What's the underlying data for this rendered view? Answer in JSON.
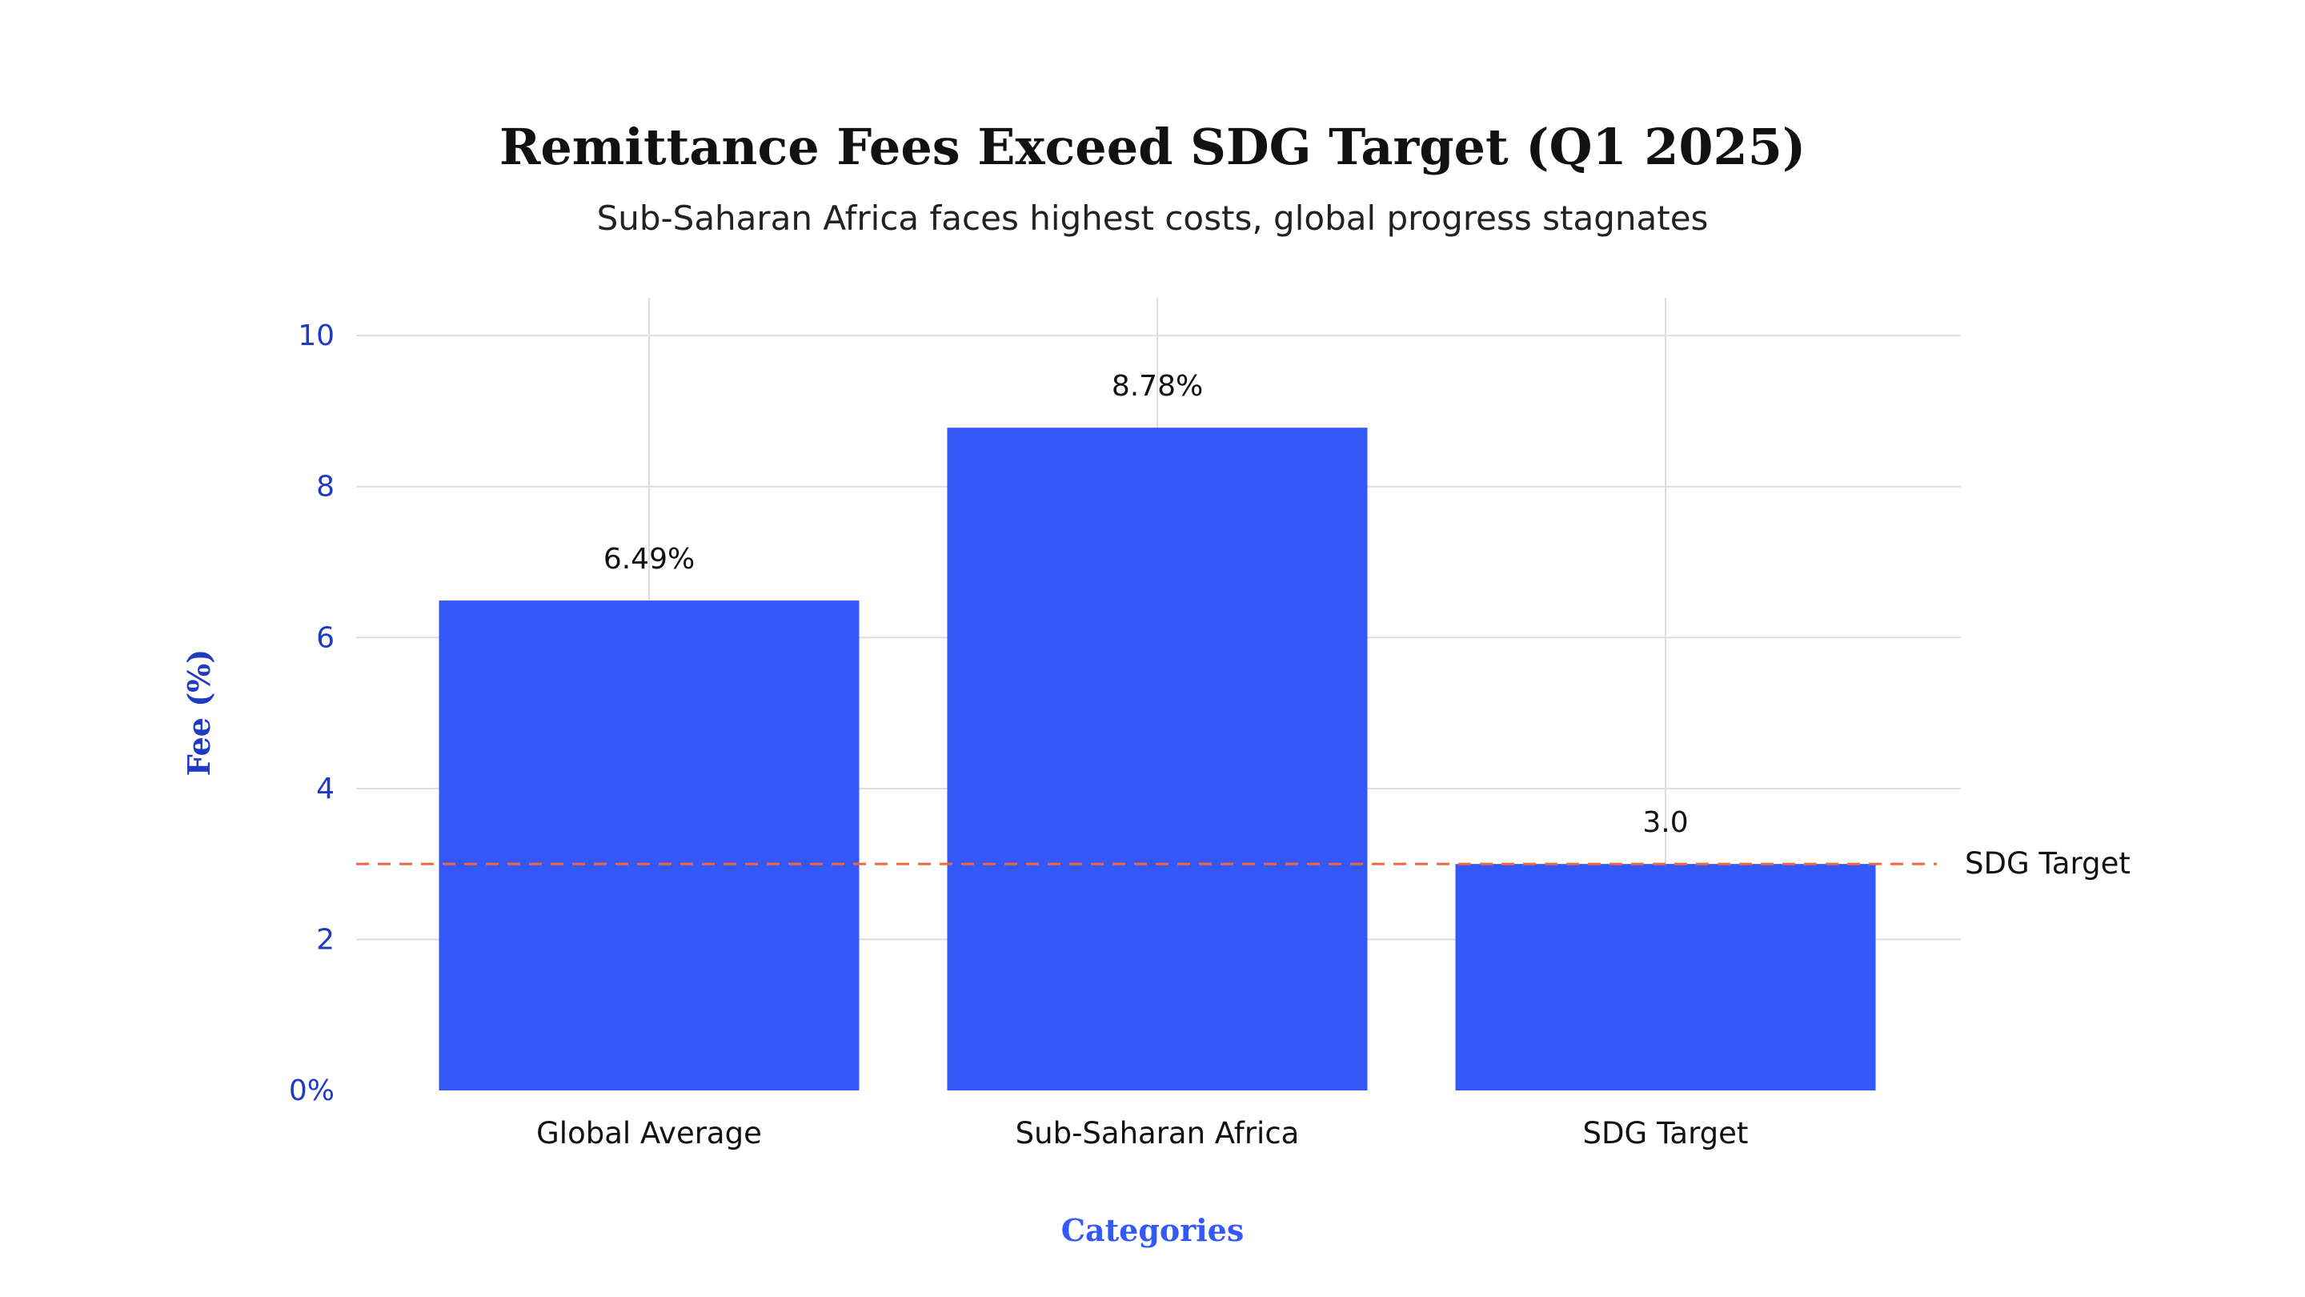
{
  "chart_data": {
    "type": "bar",
    "title": "Remittance Fees Exceed SDG Target (Q1 2025)",
    "subtitle": "Sub-Saharan Africa faces highest costs, global progress stagnates",
    "xlabel": "Categories",
    "ylabel": "Fee (%)",
    "categories": [
      "Global Average",
      "Sub-Saharan Africa",
      "SDG Target"
    ],
    "values": [
      6.49,
      8.78,
      3.0
    ],
    "value_labels": [
      "6.49%",
      "8.78%",
      "3.0"
    ],
    "ylim": [
      0,
      10.5
    ],
    "yticks": [
      0,
      2,
      4,
      6,
      8,
      10
    ],
    "ytick_labels": [
      "0%",
      "2",
      "4",
      "6",
      "8",
      "10"
    ],
    "grid": true,
    "reference_line": {
      "value": 3.0,
      "label": "SDG Target",
      "style": "dashed",
      "color": "#f26640"
    },
    "colors": {
      "bar": "#3558f9",
      "axis_text": "#1f3bc4",
      "xlabel_text": "#3558f9",
      "grid": "#dddddd"
    }
  }
}
